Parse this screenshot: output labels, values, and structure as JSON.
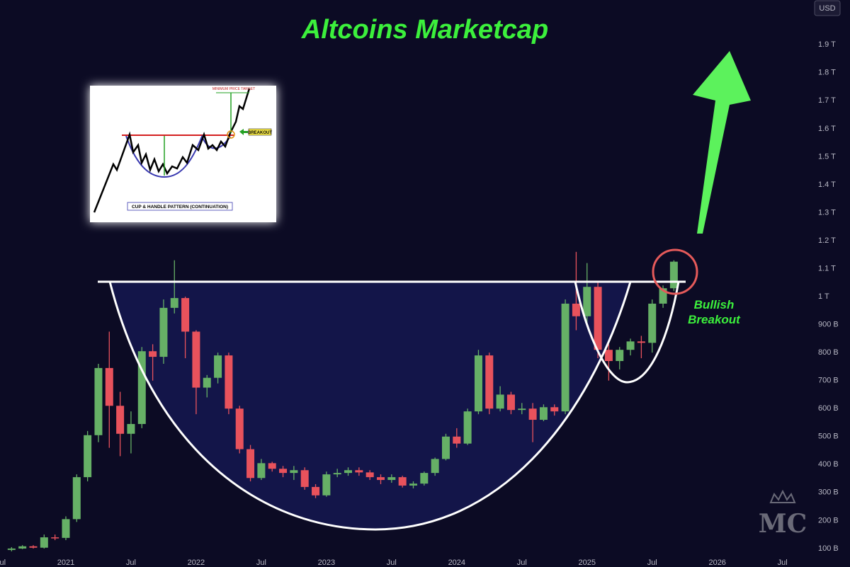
{
  "chart_data": {
    "type": "candlestick",
    "title": "Altcoins Marketcap",
    "currency": "USD",
    "annotation": [
      "Bullish",
      "Breakout"
    ],
    "logo": "MC",
    "inset": {
      "target": "MINIMUM PRICE TARGET",
      "breakout": "BREAKOUT",
      "caption": "CUP & HANDLE PATTERN (CONTINUATION)"
    },
    "x": [
      "2020-08",
      "2020-09",
      "2020-10",
      "2020-11",
      "2020-12",
      "2021-01",
      "2021-02",
      "2021-03",
      "2021-04",
      "2021-05",
      "2021-06",
      "2021-07",
      "2021-08",
      "2021-09",
      "2021-10",
      "2021-11",
      "2021-12",
      "2022-01",
      "2022-02",
      "2022-03",
      "2022-04",
      "2022-05",
      "2022-06",
      "2022-07",
      "2022-08",
      "2022-09",
      "2022-10",
      "2022-11",
      "2022-12",
      "2023-01",
      "2023-02",
      "2023-03",
      "2023-04",
      "2023-05",
      "2023-06",
      "2023-07",
      "2023-08",
      "2023-09",
      "2023-10",
      "2023-11",
      "2023-12",
      "2024-01",
      "2024-02",
      "2024-03",
      "2024-04",
      "2024-05",
      "2024-06",
      "2024-07",
      "2024-08",
      "2024-09",
      "2024-10",
      "2024-11",
      "2024-12",
      "2025-01",
      "2025-02",
      "2025-03",
      "2025-04",
      "2025-05",
      "2025-06",
      "2025-07",
      "2025-08",
      "2025-09"
    ],
    "open": [
      95,
      100,
      108,
      103,
      140,
      138,
      205,
      355,
      505,
      745,
      610,
      510,
      545,
      805,
      785,
      960,
      995,
      875,
      675,
      710,
      790,
      600,
      455,
      352,
      405,
      385,
      370,
      380,
      320,
      290,
      365,
      370,
      380,
      372,
      355,
      345,
      355,
      325,
      332,
      370,
      420,
      500,
      475,
      590,
      790,
      600,
      650,
      595,
      600,
      560,
      605,
      590,
      975,
      930,
      1035,
      810,
      770,
      810,
      840,
      835,
      975,
      1030
    ],
    "high": [
      105,
      112,
      112,
      150,
      150,
      215,
      365,
      520,
      760,
      875,
      660,
      590,
      820,
      830,
      990,
      1130,
      1000,
      880,
      720,
      800,
      800,
      610,
      470,
      420,
      410,
      395,
      395,
      390,
      330,
      375,
      385,
      390,
      390,
      380,
      365,
      365,
      360,
      340,
      375,
      425,
      510,
      530,
      600,
      810,
      800,
      680,
      660,
      620,
      620,
      615,
      615,
      990,
      1160,
      1120,
      1050,
      830,
      820,
      850,
      860,
      990,
      1040,
      1130
    ],
    "low": [
      90,
      98,
      100,
      100,
      130,
      130,
      195,
      340,
      480,
      460,
      430,
      440,
      530,
      700,
      760,
      940,
      780,
      580,
      640,
      690,
      580,
      440,
      340,
      345,
      375,
      355,
      345,
      310,
      280,
      285,
      355,
      360,
      360,
      345,
      330,
      335,
      318,
      315,
      325,
      360,
      415,
      460,
      470,
      580,
      580,
      590,
      580,
      580,
      480,
      555,
      575,
      580,
      880,
      900,
      780,
      700,
      740,
      790,
      780,
      800,
      960,
      1020
    ],
    "close": [
      100,
      108,
      103,
      140,
      138,
      205,
      355,
      505,
      745,
      610,
      510,
      545,
      805,
      785,
      960,
      995,
      875,
      675,
      710,
      790,
      600,
      455,
      352,
      405,
      385,
      370,
      380,
      320,
      290,
      365,
      370,
      380,
      372,
      355,
      345,
      355,
      325,
      332,
      370,
      420,
      500,
      475,
      590,
      790,
      600,
      650,
      595,
      600,
      560,
      605,
      590,
      975,
      930,
      1035,
      810,
      770,
      810,
      840,
      835,
      975,
      1030,
      1125
    ],
    "up_color": "#66b066",
    "down_color": "#e8525c",
    "xlim": [
      "2020-07",
      "2026-08"
    ],
    "xticks": [
      {
        "value": "2020-07",
        "label": "Jul"
      },
      {
        "value": "2021-01",
        "label": "2021"
      },
      {
        "value": "2021-07",
        "label": "Jul"
      },
      {
        "value": "2022-01",
        "label": "2022"
      },
      {
        "value": "2022-07",
        "label": "Jul"
      },
      {
        "value": "2023-01",
        "label": "2023"
      },
      {
        "value": "2023-07",
        "label": "Jul"
      },
      {
        "value": "2024-01",
        "label": "2024"
      },
      {
        "value": "2024-07",
        "label": "Jul"
      },
      {
        "value": "2025-01",
        "label": "2025"
      },
      {
        "value": "2025-07",
        "label": "Jul"
      },
      {
        "value": "2026-01",
        "label": "2026"
      },
      {
        "value": "2026-07",
        "label": "Jul"
      }
    ],
    "ylim": [
      34,
      2060
    ],
    "yticks": [
      {
        "value": 100,
        "label": "100 B"
      },
      {
        "value": 200,
        "label": "200 B"
      },
      {
        "value": 300,
        "label": "300 B"
      },
      {
        "value": 400,
        "label": "400 B"
      },
      {
        "value": 500,
        "label": "500 B"
      },
      {
        "value": 600,
        "label": "600 B"
      },
      {
        "value": 700,
        "label": "700 B"
      },
      {
        "value": 800,
        "label": "800 B"
      },
      {
        "value": 900,
        "label": "900 B"
      },
      {
        "value": 1000,
        "label": "1 T"
      },
      {
        "value": 1100,
        "label": "1.1 T"
      },
      {
        "value": 1200,
        "label": "1.2 T"
      },
      {
        "value": 1300,
        "label": "1.3 T"
      },
      {
        "value": 1400,
        "label": "1.4 T"
      },
      {
        "value": 1500,
        "label": "1.5 T"
      },
      {
        "value": 1600,
        "label": "1.6 T"
      },
      {
        "value": 1700,
        "label": "1.7 T"
      },
      {
        "value": 1800,
        "label": "1.8 T"
      },
      {
        "value": 1900,
        "label": "1.9 T"
      }
    ],
    "grid": false
  }
}
